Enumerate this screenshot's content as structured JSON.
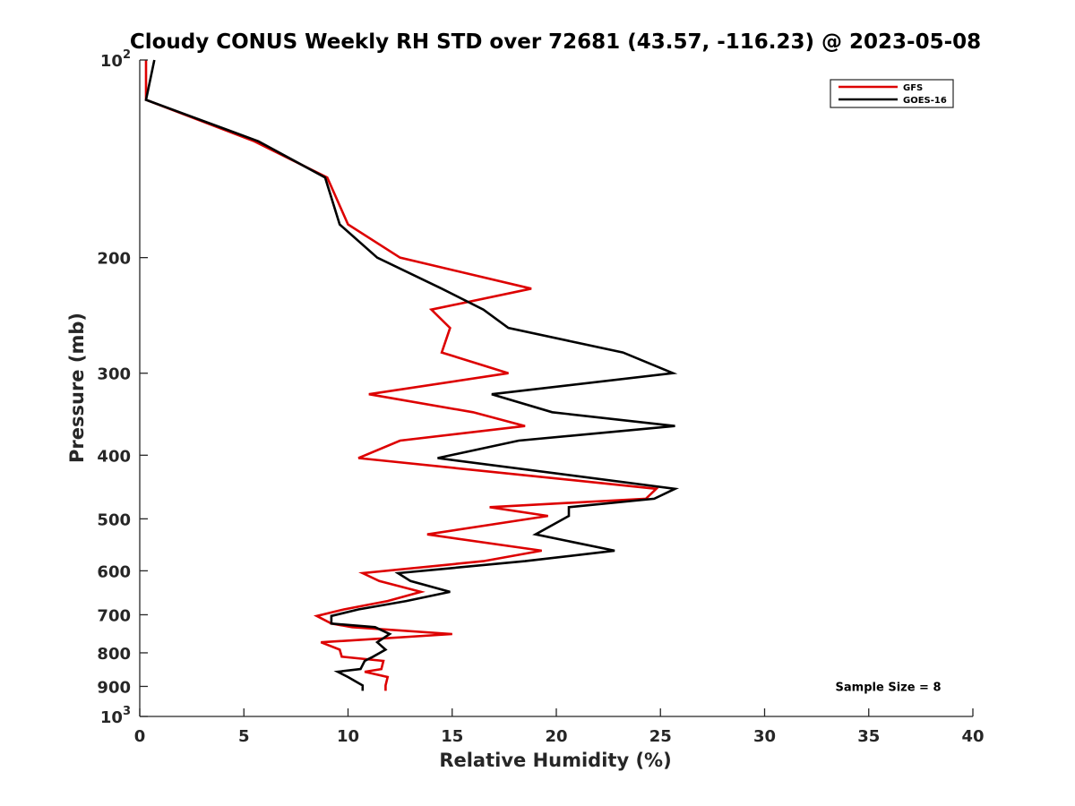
{
  "chart_data": {
    "type": "line",
    "title": "Cloudy CONUS Weekly RH STD over 72681 (43.57, -116.23) @ 2023-05-08",
    "xlabel": "Relative Humidity (%)",
    "ylabel": "Pressure (mb)",
    "xlim": [
      0,
      40
    ],
    "ylim": [
      100,
      1000
    ],
    "y_scale": "log",
    "y_reversed": true,
    "x_ticks": [
      0,
      5,
      10,
      15,
      20,
      25,
      30,
      35,
      40
    ],
    "x_tick_labels": [
      "0",
      "5",
      "10",
      "15",
      "20",
      "25",
      "30",
      "35",
      "40"
    ],
    "y_ticks": [
      100,
      200,
      300,
      400,
      500,
      600,
      700,
      800,
      900,
      1000
    ],
    "y_tick_labels": [
      {
        "base": "10",
        "exp": "2"
      },
      {
        "base": "200",
        "exp": ""
      },
      {
        "base": "300",
        "exp": ""
      },
      {
        "base": "400",
        "exp": ""
      },
      {
        "base": "500",
        "exp": ""
      },
      {
        "base": "600",
        "exp": ""
      },
      {
        "base": "700",
        "exp": ""
      },
      {
        "base": "800",
        "exp": ""
      },
      {
        "base": "900",
        "exp": ""
      },
      {
        "base": "10",
        "exp": "3"
      }
    ],
    "grid": false,
    "legend_position": "top-right",
    "series": [
      {
        "name": "GFS",
        "color": "#dd0000",
        "points": [
          [
            0.3,
            100
          ],
          [
            0.3,
            115
          ],
          [
            5.5,
            133
          ],
          [
            9.0,
            151
          ],
          [
            10.0,
            178
          ],
          [
            12.5,
            200
          ],
          [
            18.8,
            223
          ],
          [
            14.0,
            240
          ],
          [
            14.9,
            256
          ],
          [
            14.5,
            279
          ],
          [
            17.7,
            300
          ],
          [
            11.0,
            323
          ],
          [
            16.0,
            344
          ],
          [
            18.5,
            361
          ],
          [
            12.5,
            380
          ],
          [
            10.5,
            404
          ],
          [
            24.8,
            450
          ],
          [
            24.3,
            466
          ],
          [
            16.8,
            480
          ],
          [
            19.6,
            495
          ],
          [
            13.8,
            528
          ],
          [
            19.3,
            559
          ],
          [
            16.5,
            580
          ],
          [
            10.7,
            605
          ],
          [
            11.5,
            622
          ],
          [
            13.5,
            646
          ],
          [
            11.9,
            667
          ],
          [
            9.8,
            687
          ],
          [
            8.5,
            703
          ],
          [
            9.2,
            722
          ],
          [
            10.2,
            731
          ],
          [
            15.0,
            749
          ],
          [
            8.7,
            771
          ],
          [
            9.6,
            791
          ],
          [
            9.7,
            811
          ],
          [
            11.7,
            823
          ],
          [
            11.6,
            847
          ],
          [
            10.8,
            855
          ],
          [
            11.9,
            871
          ],
          [
            11.8,
            897
          ],
          [
            11.8,
            914
          ]
        ]
      },
      {
        "name": "GOES-16",
        "color": "#000000",
        "points": [
          [
            0.7,
            100
          ],
          [
            0.3,
            115
          ],
          [
            5.7,
            133
          ],
          [
            8.9,
            151
          ],
          [
            9.6,
            178
          ],
          [
            11.4,
            200
          ],
          [
            14.5,
            223
          ],
          [
            16.5,
            240
          ],
          [
            17.7,
            256
          ],
          [
            23.2,
            279
          ],
          [
            25.6,
            300
          ],
          [
            16.9,
            323
          ],
          [
            19.8,
            344
          ],
          [
            25.7,
            361
          ],
          [
            18.2,
            380
          ],
          [
            14.3,
            404
          ],
          [
            25.7,
            450
          ],
          [
            24.7,
            466
          ],
          [
            20.6,
            480
          ],
          [
            20.6,
            495
          ],
          [
            19.0,
            528
          ],
          [
            22.8,
            559
          ],
          [
            18.5,
            580
          ],
          [
            12.4,
            605
          ],
          [
            13.0,
            622
          ],
          [
            14.9,
            646
          ],
          [
            12.8,
            667
          ],
          [
            10.5,
            687
          ],
          [
            9.2,
            703
          ],
          [
            9.2,
            722
          ],
          [
            11.3,
            731
          ],
          [
            12.0,
            749
          ],
          [
            11.4,
            771
          ],
          [
            11.8,
            791
          ],
          [
            11.2,
            811
          ],
          [
            10.8,
            823
          ],
          [
            10.6,
            847
          ],
          [
            9.5,
            855
          ],
          [
            10.0,
            871
          ],
          [
            10.7,
            897
          ],
          [
            10.7,
            914
          ]
        ]
      }
    ],
    "annotations": [
      {
        "text": "Sample Size = 8",
        "x": 33.4,
        "y": 900
      }
    ]
  }
}
